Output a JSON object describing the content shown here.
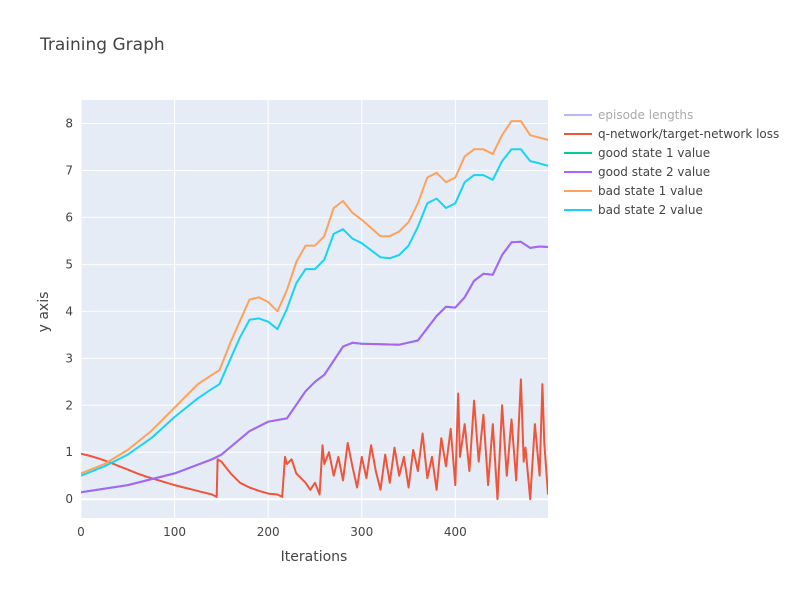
{
  "chart_data": {
    "type": "line",
    "title": "Training Graph",
    "xlabel": "Iterations",
    "ylabel": "y axis",
    "xlim": [
      0,
      499
    ],
    "ylim": [
      -0.4,
      8.5
    ],
    "x_ticks": [
      0,
      100,
      200,
      300,
      400
    ],
    "y_ticks": [
      0,
      1,
      2,
      3,
      4,
      5,
      6,
      7,
      8
    ],
    "grid": true,
    "legend_position": "right",
    "series": [
      {
        "name": "episode lengths",
        "color": "#b6b9f7",
        "hidden": true,
        "x": [],
        "y": []
      },
      {
        "name": "q-network/target-network loss",
        "color": "#ef553b",
        "x": [
          0,
          10,
          20,
          30,
          40,
          50,
          60,
          70,
          80,
          90,
          100,
          110,
          120,
          130,
          140,
          145,
          146,
          150,
          160,
          170,
          180,
          190,
          200,
          210,
          215,
          218,
          220,
          225,
          230,
          240,
          245,
          250,
          255,
          258,
          260,
          265,
          270,
          275,
          280,
          285,
          290,
          295,
          300,
          305,
          310,
          315,
          320,
          325,
          330,
          335,
          340,
          345,
          350,
          355,
          360,
          365,
          370,
          375,
          380,
          385,
          390,
          395,
          400,
          403,
          405,
          410,
          415,
          420,
          425,
          430,
          435,
          440,
          445,
          450,
          455,
          460,
          465,
          470,
          473,
          475,
          480,
          485,
          490,
          493,
          495,
          499
        ],
        "y": [
          0.97,
          0.92,
          0.86,
          0.79,
          0.71,
          0.63,
          0.55,
          0.48,
          0.42,
          0.36,
          0.3,
          0.25,
          0.2,
          0.15,
          0.1,
          0.05,
          0.85,
          0.8,
          0.55,
          0.35,
          0.25,
          0.18,
          0.12,
          0.1,
          0.05,
          0.9,
          0.75,
          0.85,
          0.55,
          0.35,
          0.2,
          0.35,
          0.1,
          1.15,
          0.75,
          1.0,
          0.5,
          0.9,
          0.4,
          1.2,
          0.7,
          0.25,
          0.9,
          0.45,
          1.15,
          0.6,
          0.2,
          0.95,
          0.35,
          1.1,
          0.5,
          0.9,
          0.25,
          1.05,
          0.6,
          1.4,
          0.45,
          0.9,
          0.2,
          1.3,
          0.7,
          1.5,
          0.3,
          2.25,
          0.9,
          1.6,
          0.6,
          2.1,
          0.8,
          1.8,
          0.3,
          1.6,
          0.0,
          2.0,
          0.5,
          1.7,
          0.4,
          2.55,
          0.8,
          1.1,
          0.0,
          1.6,
          0.5,
          2.45,
          1.2,
          0.1
        ]
      },
      {
        "name": "good state 1 value",
        "color": "#00cc96",
        "x": [
          0,
          50,
          100,
          140,
          150,
          180,
          200,
          220,
          240,
          250,
          260,
          270,
          280,
          290,
          300,
          340,
          360,
          380,
          390,
          400,
          410,
          420,
          430,
          440,
          450,
          460,
          470,
          480,
          490,
          499
        ],
        "y": [
          0.15,
          0.3,
          0.55,
          0.85,
          0.95,
          1.45,
          1.65,
          1.72,
          2.3,
          2.5,
          2.65,
          2.95,
          3.25,
          3.33,
          3.31,
          3.29,
          3.38,
          3.9,
          4.1,
          4.08,
          4.3,
          4.65,
          4.8,
          4.78,
          5.2,
          5.47,
          5.48,
          5.35,
          5.38,
          5.37
        ]
      },
      {
        "name": "good state 2 value",
        "color": "#ab63fa",
        "x": [
          0,
          50,
          100,
          140,
          150,
          180,
          200,
          220,
          240,
          250,
          260,
          270,
          280,
          290,
          300,
          340,
          360,
          380,
          390,
          400,
          410,
          420,
          430,
          440,
          450,
          460,
          470,
          480,
          490,
          499
        ],
        "y": [
          0.15,
          0.3,
          0.55,
          0.85,
          0.95,
          1.45,
          1.65,
          1.72,
          2.3,
          2.5,
          2.65,
          2.95,
          3.25,
          3.33,
          3.31,
          3.29,
          3.38,
          3.9,
          4.1,
          4.08,
          4.3,
          4.65,
          4.8,
          4.78,
          5.2,
          5.47,
          5.48,
          5.35,
          5.38,
          5.37
        ]
      },
      {
        "name": "bad state 1 value",
        "color": "#ffa15a",
        "x": [
          0,
          25,
          50,
          75,
          100,
          125,
          140,
          148,
          160,
          170,
          180,
          190,
          200,
          210,
          220,
          230,
          240,
          250,
          260,
          270,
          280,
          290,
          300,
          320,
          330,
          340,
          350,
          360,
          370,
          380,
          390,
          400,
          410,
          420,
          430,
          440,
          450,
          460,
          470,
          480,
          490,
          499
        ],
        "y": [
          0.55,
          0.75,
          1.05,
          1.45,
          1.95,
          2.45,
          2.65,
          2.75,
          3.35,
          3.8,
          4.25,
          4.3,
          4.2,
          4.0,
          4.45,
          5.05,
          5.4,
          5.4,
          5.6,
          6.2,
          6.35,
          6.1,
          5.95,
          5.6,
          5.6,
          5.7,
          5.9,
          6.3,
          6.85,
          6.95,
          6.75,
          6.85,
          7.3,
          7.45,
          7.45,
          7.35,
          7.75,
          8.05,
          8.05,
          7.75,
          7.7,
          7.65
        ]
      },
      {
        "name": "bad state 2 value",
        "color": "#19d3f3",
        "x": [
          0,
          25,
          50,
          75,
          100,
          125,
          140,
          148,
          160,
          170,
          180,
          190,
          200,
          210,
          220,
          230,
          240,
          250,
          260,
          270,
          280,
          290,
          300,
          320,
          330,
          340,
          350,
          360,
          370,
          380,
          390,
          400,
          410,
          420,
          430,
          440,
          450,
          460,
          470,
          480,
          490,
          499
        ],
        "y": [
          0.5,
          0.7,
          0.95,
          1.3,
          1.75,
          2.15,
          2.35,
          2.45,
          3.0,
          3.45,
          3.82,
          3.85,
          3.78,
          3.62,
          4.05,
          4.6,
          4.9,
          4.9,
          5.1,
          5.65,
          5.75,
          5.55,
          5.45,
          5.15,
          5.13,
          5.2,
          5.4,
          5.8,
          6.3,
          6.4,
          6.2,
          6.3,
          6.75,
          6.9,
          6.9,
          6.8,
          7.2,
          7.45,
          7.45,
          7.2,
          7.15,
          7.1
        ]
      }
    ]
  }
}
